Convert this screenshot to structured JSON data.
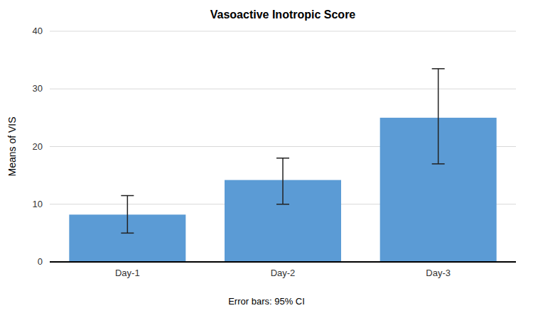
{
  "chart_data": {
    "type": "bar",
    "title": "Vasoactive Inotropic Score",
    "ylabel": "Means of VIS",
    "annotation": "Error bars: 95% CI",
    "categories": [
      "Day-1",
      "Day-2",
      "Day-3"
    ],
    "values": [
      8.2,
      14.2,
      25.0
    ],
    "error_upper": [
      3.3,
      3.8,
      8.5
    ],
    "error_lower": [
      3.2,
      4.2,
      8.0
    ],
    "color": "#5b9bd5",
    "ylim": [
      0,
      40
    ],
    "yticks": [
      0,
      10,
      20,
      30,
      40
    ],
    "grid": true
  }
}
